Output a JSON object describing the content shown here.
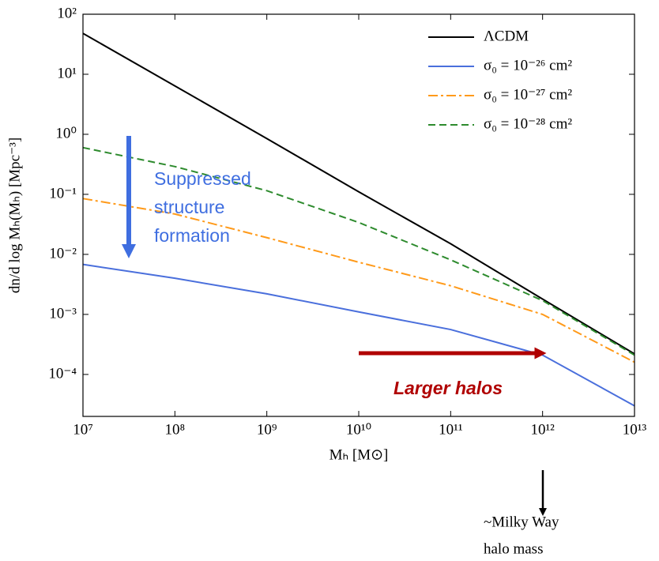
{
  "chart_data": {
    "type": "line",
    "x_label": "Mₕ [M⊙]",
    "y_label": "dn/d log Mₕ(Mₕ) [Mpc⁻³]",
    "log_x": true,
    "log_y": true,
    "x": [
      10000000,
      100000000,
      1000000000,
      10000000000,
      100000000000,
      1000000000000,
      10000000000000
    ],
    "series": [
      {
        "name": "ΛCDM",
        "color": "#000000",
        "dash": "solid",
        "values": [
          48,
          6.4,
          0.85,
          0.11,
          0.015,
          0.0018,
          0.00022
        ]
      },
      {
        "name": "σ₀ = 10⁻²⁶ cm²",
        "color": "#4a6fdc",
        "dash": "solid",
        "values": [
          0.0068,
          0.004,
          0.0022,
          0.0011,
          0.00056,
          0.00021,
          3e-05
        ]
      },
      {
        "name": "σ₀ = 10⁻²⁷ cm²",
        "color": "#ff9a1a",
        "dash": "dashdot",
        "values": [
          0.085,
          0.047,
          0.019,
          0.0074,
          0.003,
          0.001,
          0.00016
        ]
      },
      {
        "name": "σ₀ = 10⁻²⁸ cm²",
        "color": "#2e8b2e",
        "dash": "dashed",
        "values": [
          0.6,
          0.29,
          0.115,
          0.034,
          0.0081,
          0.0017,
          0.00021
        ]
      }
    ],
    "xlim": [
      10000000,
      10000000000000
    ],
    "ylim": [
      2e-05,
      100
    ],
    "xticks": [
      {
        "value": 10000000,
        "label": "10⁷"
      },
      {
        "value": 100000000,
        "label": "10⁸"
      },
      {
        "value": 1000000000,
        "label": "10⁹"
      },
      {
        "value": 10000000000,
        "label": "10¹⁰"
      },
      {
        "value": 100000000000,
        "label": "10¹¹"
      },
      {
        "value": 1000000000000,
        "label": "10¹²"
      },
      {
        "value": 10000000000000,
        "label": "10¹³"
      }
    ],
    "yticks": [
      {
        "value": 0.0001,
        "label": "10⁻⁴"
      },
      {
        "value": 0.001,
        "label": "10⁻³"
      },
      {
        "value": 0.01,
        "label": "10⁻²"
      },
      {
        "value": 0.1,
        "label": "10⁻¹"
      },
      {
        "value": 1,
        "label": "10⁰"
      },
      {
        "value": 10,
        "label": "10¹"
      },
      {
        "value": 100,
        "label": "10²"
      }
    ],
    "legend": "upper right",
    "annotations": [
      {
        "lines": [
          "Suppressed",
          "structure",
          "formation"
        ],
        "color": "#3f6ee0"
      },
      {
        "lines": [
          "Larger halos"
        ],
        "color": "#b00000"
      },
      {
        "lines": [
          "~Milky Way",
          "halo mass"
        ],
        "color": "#000000"
      }
    ]
  }
}
